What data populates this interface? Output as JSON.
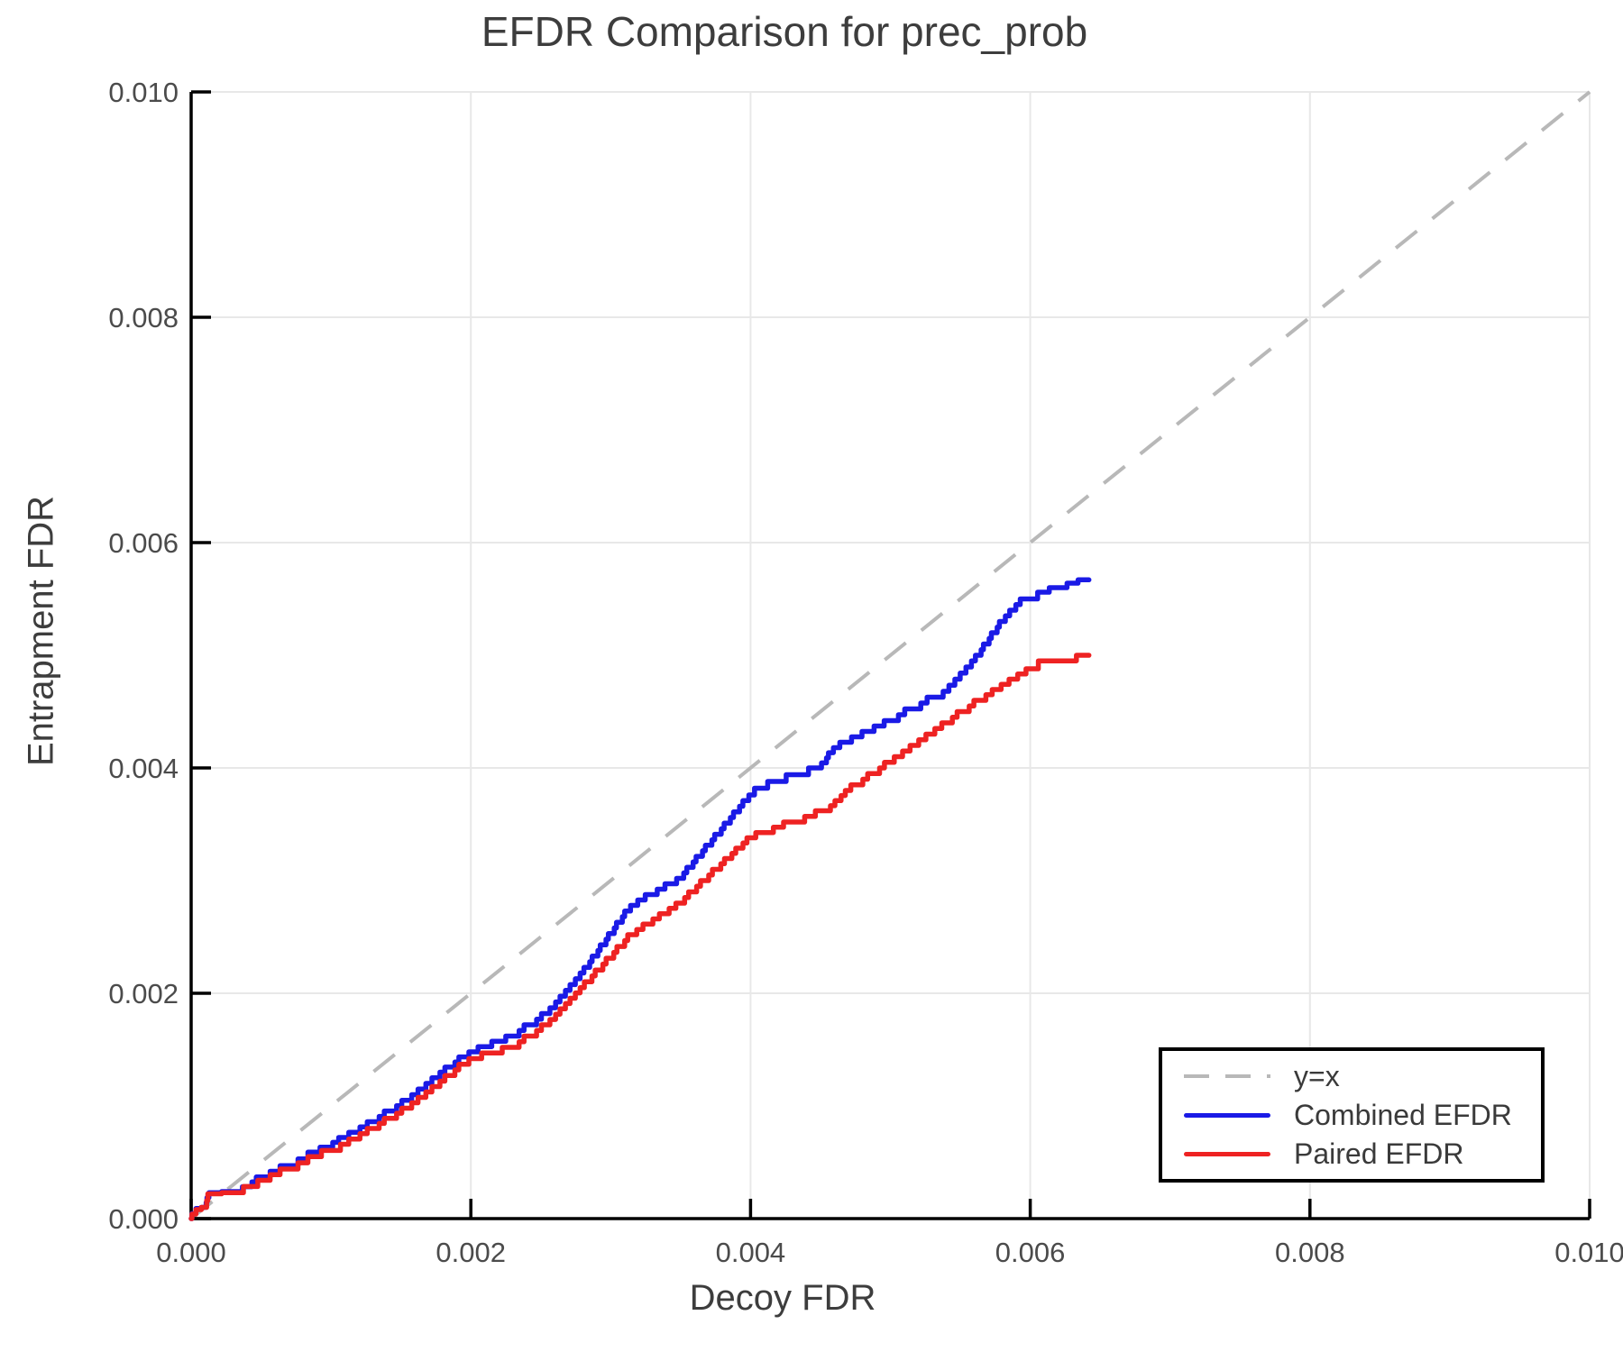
{
  "chart_data": {
    "type": "line",
    "title": "EFDR Comparison for prec_prob",
    "xlabel": "Decoy FDR",
    "ylabel": "Entrapment FDR",
    "xlim": [
      0.0,
      0.01
    ],
    "ylim": [
      0.0,
      0.01
    ],
    "grid": true,
    "legend_position": "bottom-right",
    "xticks": [
      0.0,
      0.002,
      0.004,
      0.006,
      0.008,
      0.01
    ],
    "xtick_labels": [
      "0.000",
      "0.002",
      "0.004",
      "0.006",
      "0.008",
      "0.010"
    ],
    "yticks": [
      0.0,
      0.002,
      0.004,
      0.006,
      0.008,
      0.01
    ],
    "ytick_labels": [
      "0.000",
      "0.002",
      "0.004",
      "0.006",
      "0.008",
      "0.010"
    ],
    "series": [
      {
        "name": "y=x",
        "role": "reference-line",
        "style": "dashed",
        "color": "#b8b8b8",
        "points": [
          [
            0.0,
            0.0
          ],
          [
            0.01,
            0.01
          ]
        ]
      },
      {
        "name": "Combined EFDR",
        "role": "data-line",
        "style": "step",
        "color": "#1a1ae6",
        "points": [
          [
            0.0,
            0.0
          ],
          [
            4e-05,
            9e-05
          ],
          [
            0.0001,
            0.0001
          ],
          [
            0.00013,
            0.00023
          ],
          [
            0.00035,
            0.00024
          ],
          [
            0.0005,
            0.00037
          ],
          [
            0.0007,
            0.00047
          ],
          [
            0.0009,
            0.00059
          ],
          [
            0.0011,
            0.00072
          ],
          [
            0.0013,
            0.00086
          ],
          [
            0.00155,
            0.00105
          ],
          [
            0.0018,
            0.0013
          ],
          [
            0.002,
            0.00148
          ],
          [
            0.0023,
            0.00162
          ],
          [
            0.00255,
            0.00182
          ],
          [
            0.0028,
            0.00218
          ],
          [
            0.00315,
            0.00278
          ],
          [
            0.0035,
            0.00302
          ],
          [
            0.0038,
            0.00346
          ],
          [
            0.004,
            0.00376
          ],
          [
            0.00415,
            0.00388
          ],
          [
            0.0043,
            0.00394
          ],
          [
            0.0045,
            0.004
          ],
          [
            0.0046,
            0.00418
          ],
          [
            0.005,
            0.00442
          ],
          [
            0.0054,
            0.00468
          ],
          [
            0.0056,
            0.00495
          ],
          [
            0.0058,
            0.0053
          ],
          [
            0.00595,
            0.0055
          ],
          [
            0.0061,
            0.00556
          ],
          [
            0.0063,
            0.00564
          ],
          [
            0.00642,
            0.00567
          ]
        ]
      },
      {
        "name": "Paired EFDR",
        "role": "data-line",
        "style": "step",
        "color": "#ee2222",
        "points": [
          [
            0.0,
            0.0
          ],
          [
            4e-05,
            8e-05
          ],
          [
            0.0001,
            0.0001
          ],
          [
            0.00013,
            0.00022
          ],
          [
            0.00035,
            0.00023
          ],
          [
            0.0005,
            0.00034
          ],
          [
            0.0007,
            0.00044
          ],
          [
            0.0009,
            0.00055
          ],
          [
            0.0011,
            0.00066
          ],
          [
            0.0013,
            0.0008
          ],
          [
            0.00155,
            0.00098
          ],
          [
            0.0018,
            0.00122
          ],
          [
            0.002,
            0.00142
          ],
          [
            0.0023,
            0.00152
          ],
          [
            0.00255,
            0.00172
          ],
          [
            0.0028,
            0.00205
          ],
          [
            0.00315,
            0.00252
          ],
          [
            0.0035,
            0.0028
          ],
          [
            0.0038,
            0.00315
          ],
          [
            0.004,
            0.00338
          ],
          [
            0.0043,
            0.00352
          ],
          [
            0.00455,
            0.00362
          ],
          [
            0.0047,
            0.0038
          ],
          [
            0.005,
            0.00405
          ],
          [
            0.0054,
            0.0044
          ],
          [
            0.0057,
            0.00465
          ],
          [
            0.006,
            0.00488
          ],
          [
            0.0062,
            0.00495
          ],
          [
            0.00642,
            0.005
          ]
        ]
      }
    ],
    "colors": {
      "axis": "#000000",
      "grid": "#e8e8e8",
      "title_text": "#3d3d3d",
      "tick_text": "#4b4b4b",
      "legend_border": "#000000",
      "background": "#ffffff"
    }
  },
  "legend": {
    "entries": [
      "y=x",
      "Combined EFDR",
      "Paired EFDR"
    ]
  }
}
